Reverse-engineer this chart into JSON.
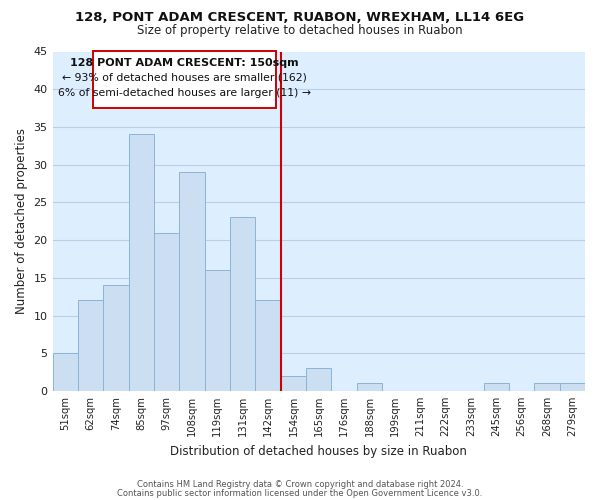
{
  "title": "128, PONT ADAM CRESCENT, RUABON, WREXHAM, LL14 6EG",
  "subtitle": "Size of property relative to detached houses in Ruabon",
  "xlabel": "Distribution of detached houses by size in Ruabon",
  "ylabel": "Number of detached properties",
  "bar_color": "#ccdff2",
  "bar_edge_color": "#8ab4d8",
  "grid_color": "#b8cfe8",
  "background_color": "#ffffff",
  "plot_bg_color": "#ddeeff",
  "categories": [
    "51sqm",
    "62sqm",
    "74sqm",
    "85sqm",
    "97sqm",
    "108sqm",
    "119sqm",
    "131sqm",
    "142sqm",
    "154sqm",
    "165sqm",
    "176sqm",
    "188sqm",
    "199sqm",
    "211sqm",
    "222sqm",
    "233sqm",
    "245sqm",
    "256sqm",
    "268sqm",
    "279sqm"
  ],
  "values": [
    5,
    12,
    14,
    34,
    21,
    29,
    16,
    23,
    12,
    2,
    3,
    0,
    1,
    0,
    0,
    0,
    0,
    1,
    0,
    1,
    1
  ],
  "ylim": [
    0,
    45
  ],
  "yticks": [
    0,
    5,
    10,
    15,
    20,
    25,
    30,
    35,
    40,
    45
  ],
  "vline_x": 8.5,
  "vline_color": "#cc0000",
  "annotation_title": "128 PONT ADAM CRESCENT: 150sqm",
  "annotation_line1": "← 93% of detached houses are smaller (162)",
  "annotation_line2": "6% of semi-detached houses are larger (11) →",
  "annotation_box_color": "#ffffff",
  "annotation_box_edge": "#cc0000",
  "footer1": "Contains HM Land Registry data © Crown copyright and database right 2024.",
  "footer2": "Contains public sector information licensed under the Open Government Licence v3.0."
}
